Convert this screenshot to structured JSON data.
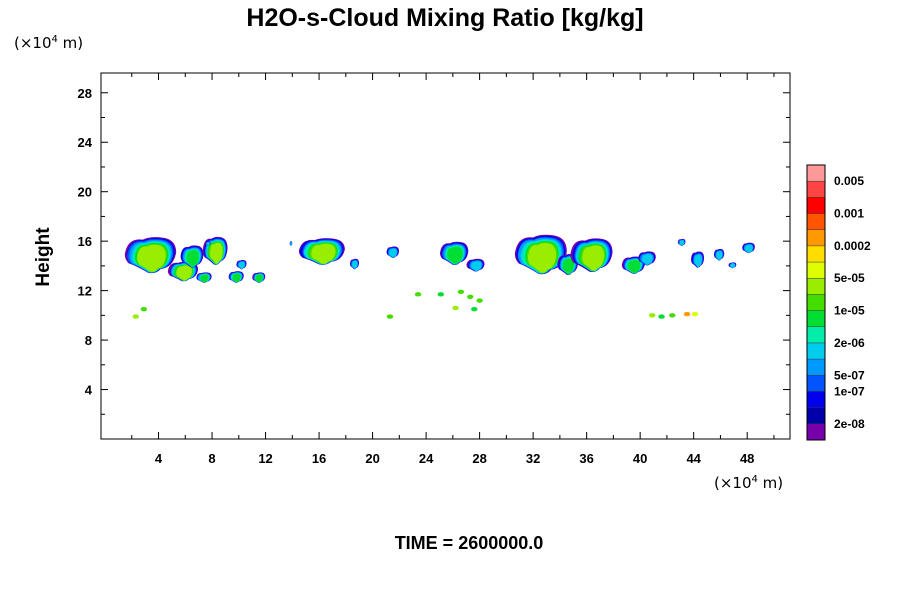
{
  "chart_data": {
    "type": "heatmap",
    "title": "H2O-s-Cloud Mixing Ratio [kg/kg]",
    "ylabel": "Height",
    "xlabel": "",
    "x_unit": {
      "prefix": "(×10",
      "exp": "4",
      "suffix": " m)"
    },
    "y_unit": {
      "prefix": "(×10",
      "exp": "4",
      "suffix": " m)"
    },
    "xlim": [
      -0.3,
      51.2
    ],
    "ylim": [
      0,
      29.6
    ],
    "x_ticks_major": [
      4,
      8,
      12,
      16,
      20,
      24,
      28,
      32,
      36,
      40,
      44,
      48
    ],
    "x_tick_labels": [
      "4",
      "8",
      "12",
      "16",
      "20",
      "24",
      "28",
      "32",
      "36",
      "40",
      "44",
      "48"
    ],
    "y_ticks_major": [
      4,
      8,
      12,
      16,
      20,
      24,
      28
    ],
    "y_tick_labels": [
      "4",
      "8",
      "12",
      "16",
      "20",
      "24",
      "28"
    ],
    "minor_step": 2,
    "colorbar": {
      "colors": [
        "#ff9999",
        "#ff4444",
        "#ff0000",
        "#ff5500",
        "#ff9900",
        "#ffdd00",
        "#ddff00",
        "#99ee00",
        "#44dd00",
        "#00dd33",
        "#00eeaa",
        "#00ccee",
        "#0099ff",
        "#0055ff",
        "#0000ee",
        "#0000aa",
        "#7700aa"
      ],
      "labels": [
        {
          "after": 1,
          "text": "0.005"
        },
        {
          "after": 3,
          "text": "0.001"
        },
        {
          "after": 5,
          "text": "0.0002"
        },
        {
          "after": 7,
          "text": "5e-05"
        },
        {
          "after": 9,
          "text": "1e-05"
        },
        {
          "after": 11,
          "text": "2e-06"
        },
        {
          "after": 13,
          "text": "5e-07"
        },
        {
          "after": 14,
          "text": "1e-07"
        },
        {
          "after": 16,
          "text": "2e-08"
        }
      ]
    },
    "clouds": [
      {
        "xs": 1.4,
        "xe": 5.4,
        "yb": 13.3,
        "yt": 16.4,
        "core": 2
      },
      {
        "xs": 4.7,
        "xe": 7.0,
        "yb": 12.7,
        "yt": 14.4,
        "core": 2
      },
      {
        "xs": 5.6,
        "xe": 7.4,
        "yb": 13.8,
        "yt": 15.7,
        "core": 1
      },
      {
        "xs": 6.8,
        "xe": 8.0,
        "yb": 12.6,
        "yt": 13.5,
        "core": 1
      },
      {
        "xs": 7.3,
        "xe": 9.2,
        "yb": 14.0,
        "yt": 16.4,
        "core": 2
      },
      {
        "xs": 9.2,
        "xe": 10.4,
        "yb": 12.6,
        "yt": 13.6,
        "core": 1
      },
      {
        "xs": 9.8,
        "xe": 10.6,
        "yb": 13.7,
        "yt": 14.5,
        "core": 0
      },
      {
        "xs": 11.0,
        "xe": 12.0,
        "yb": 12.6,
        "yt": 13.5,
        "core": 1
      },
      {
        "xs": 14.4,
        "xe": 18.0,
        "yb": 14.0,
        "yt": 16.3,
        "core": 2
      },
      {
        "xs": 18.3,
        "xe": 19.0,
        "yb": 13.7,
        "yt": 14.6,
        "core": 0
      },
      {
        "xs": 21.0,
        "xe": 22.0,
        "yb": 14.6,
        "yt": 15.6,
        "core": 0
      },
      {
        "xs": 25.0,
        "xe": 27.2,
        "yb": 14.0,
        "yt": 16.0,
        "core": 1
      },
      {
        "xs": 27.0,
        "xe": 28.4,
        "yb": 13.5,
        "yt": 14.6,
        "core": 0
      },
      {
        "xs": 30.5,
        "xe": 34.6,
        "yb": 13.2,
        "yt": 16.6,
        "core": 2
      },
      {
        "xs": 33.8,
        "xe": 35.4,
        "yb": 13.2,
        "yt": 15.0,
        "core": 1
      },
      {
        "xs": 34.8,
        "xe": 38.0,
        "yb": 13.4,
        "yt": 16.3,
        "core": 2
      },
      {
        "xs": 38.6,
        "xe": 40.4,
        "yb": 13.3,
        "yt": 14.8,
        "core": 1
      },
      {
        "xs": 39.8,
        "xe": 41.2,
        "yb": 14.0,
        "yt": 15.2,
        "core": 0
      },
      {
        "xs": 42.8,
        "xe": 43.4,
        "yb": 15.6,
        "yt": 16.2,
        "core": 0
      },
      {
        "xs": 43.8,
        "xe": 44.8,
        "yb": 13.8,
        "yt": 15.2,
        "core": 0
      },
      {
        "xs": 45.5,
        "xe": 46.3,
        "yb": 14.4,
        "yt": 15.4,
        "core": 0
      },
      {
        "xs": 46.6,
        "xe": 47.2,
        "yb": 13.8,
        "yt": 14.3,
        "core": 0
      },
      {
        "xs": 47.6,
        "xe": 48.6,
        "yb": 15.0,
        "yt": 15.9,
        "core": 0
      },
      {
        "xs": 13.8,
        "xe": 14.0,
        "yb": 15.6,
        "yt": 16.0,
        "core": 0
      },
      {
        "xs": 7.5,
        "xe": 7.9,
        "yb": 15.6,
        "yt": 16.0,
        "core": 0
      }
    ],
    "specks": [
      {
        "x": 2.3,
        "y": 9.9,
        "c": "#99ee00"
      },
      {
        "x": 2.9,
        "y": 10.5,
        "c": "#44dd00"
      },
      {
        "x": 21.3,
        "y": 9.9,
        "c": "#44dd00"
      },
      {
        "x": 23.4,
        "y": 11.7,
        "c": "#44dd00"
      },
      {
        "x": 25.1,
        "y": 11.7,
        "c": "#00dd33"
      },
      {
        "x": 26.2,
        "y": 10.6,
        "c": "#99ee00"
      },
      {
        "x": 26.6,
        "y": 11.9,
        "c": "#44dd00"
      },
      {
        "x": 27.3,
        "y": 11.5,
        "c": "#44dd00"
      },
      {
        "x": 27.6,
        "y": 10.5,
        "c": "#00dd33"
      },
      {
        "x": 28.0,
        "y": 11.2,
        "c": "#44dd00"
      },
      {
        "x": 40.9,
        "y": 10.0,
        "c": "#99ee00"
      },
      {
        "x": 41.6,
        "y": 9.9,
        "c": "#00dd33"
      },
      {
        "x": 42.4,
        "y": 10.0,
        "c": "#44dd00"
      },
      {
        "x": 43.5,
        "y": 10.1,
        "c": "#ff9900"
      },
      {
        "x": 44.1,
        "y": 10.1,
        "c": "#ddff00"
      }
    ]
  },
  "time_label": "TIME = 2600000.0"
}
